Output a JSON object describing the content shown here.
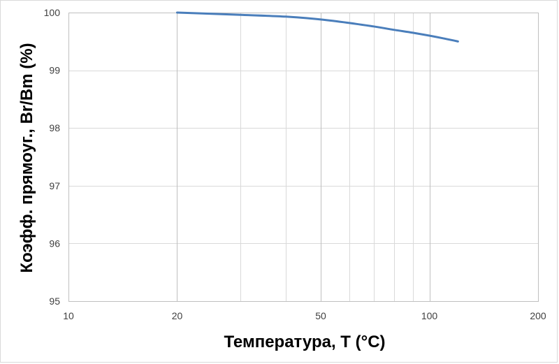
{
  "chart_data": {
    "type": "line",
    "xlabel": "Температура, T (°C)",
    "ylabel": "Коэфф. прямоуг.,  Br/Bm (%)",
    "x_scale": "log",
    "xlim": [
      10,
      200
    ],
    "ylim": [
      95,
      100
    ],
    "x_ticks": [
      10,
      20,
      50,
      100,
      200
    ],
    "x_tick_labels": [
      "10",
      "20",
      "50",
      "100",
      "200"
    ],
    "y_ticks": [
      95,
      96,
      97,
      98,
      99,
      100
    ],
    "y_tick_labels": [
      "95",
      "96",
      "97",
      "98",
      "99",
      "100"
    ],
    "x_minor_grid": [
      30,
      40,
      60,
      70,
      80,
      90
    ],
    "grid": true,
    "series": [
      {
        "color": "#4a7ebb",
        "x": [
          20,
          25,
          30,
          40,
          50,
          60,
          70,
          80,
          90,
          100,
          110,
          120
        ],
        "y": [
          100.0,
          99.98,
          99.96,
          99.93,
          99.88,
          99.82,
          99.76,
          99.7,
          99.65,
          99.6,
          99.55,
          99.5
        ]
      }
    ]
  }
}
